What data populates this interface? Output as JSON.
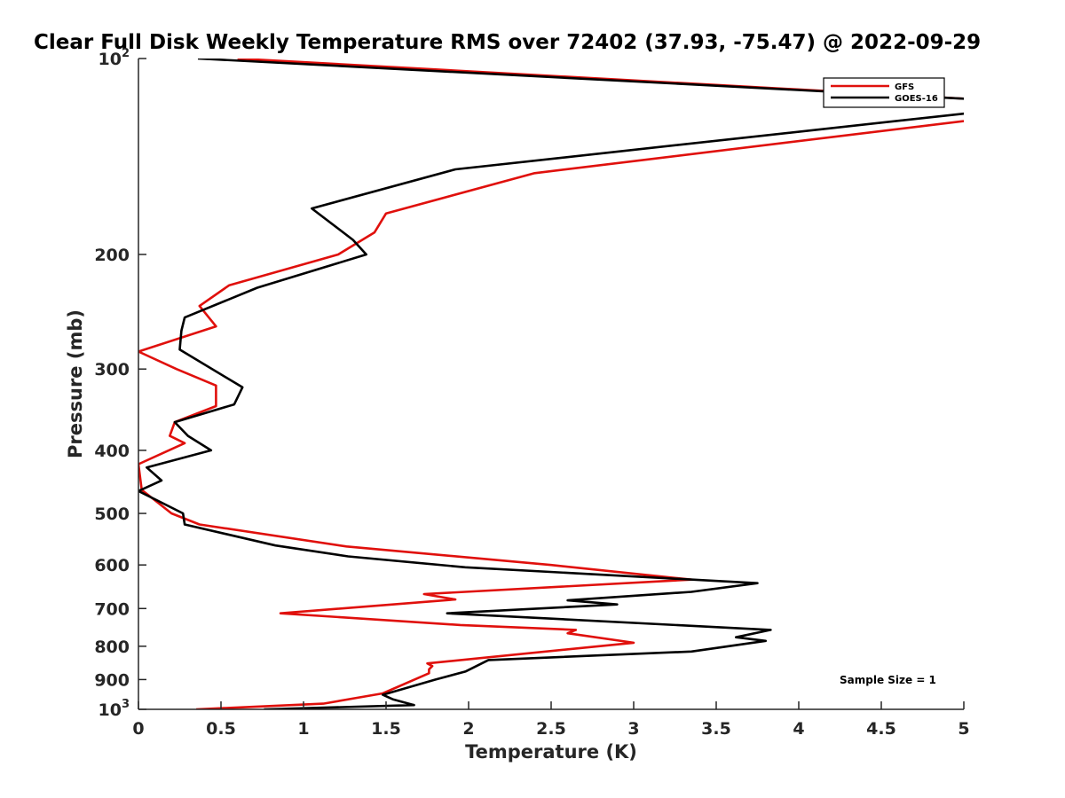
{
  "chart_data": {
    "type": "line",
    "title": "Clear Full Disk Weekly Temperature RMS over 72402 (37.93, -75.47) @ 2022-09-29",
    "xlabel": "Temperature (K)",
    "ylabel": "Pressure (mb)",
    "xlim": [
      0,
      5
    ],
    "ylim": [
      100,
      1000
    ],
    "y_scale": "log",
    "y_reversed": true,
    "grid": false,
    "x_ticks": [
      "0",
      "0.5",
      "1",
      "1.5",
      "2",
      "2.5",
      "3",
      "3.5",
      "4",
      "4.5",
      "5"
    ],
    "y_ticks": [
      {
        "value": 100,
        "base": "10",
        "exp": "2"
      },
      {
        "value": 200,
        "label": "200"
      },
      {
        "value": 300,
        "label": "300"
      },
      {
        "value": 400,
        "label": "400"
      },
      {
        "value": 500,
        "label": "500"
      },
      {
        "value": 600,
        "label": "600"
      },
      {
        "value": 700,
        "label": "700"
      },
      {
        "value": 800,
        "label": "800"
      },
      {
        "value": 900,
        "label": "900"
      },
      {
        "value": 1000,
        "base": "10",
        "exp": "3"
      }
    ],
    "legend_position": "top-right",
    "annotation": "Sample Size = 1",
    "series": [
      {
        "name": "GFS",
        "color": "#e0100c",
        "points": [
          [
            0.6,
            100
          ],
          [
            5.2,
            116
          ],
          [
            5.2,
            123
          ],
          [
            2.4,
            150
          ],
          [
            1.5,
            173
          ],
          [
            1.43,
            185
          ],
          [
            1.21,
            200
          ],
          [
            0.55,
            223
          ],
          [
            0.37,
            240
          ],
          [
            0.47,
            258
          ],
          [
            0.0,
            282
          ],
          [
            0.23,
            300
          ],
          [
            0.47,
            318
          ],
          [
            0.47,
            342
          ],
          [
            0.22,
            362
          ],
          [
            0.19,
            380
          ],
          [
            0.28,
            390
          ],
          [
            0.0,
            420
          ],
          [
            0.02,
            460
          ],
          [
            0.2,
            500
          ],
          [
            0.37,
            520
          ],
          [
            1.26,
            562
          ],
          [
            2.5,
            600
          ],
          [
            3.35,
            632
          ],
          [
            1.73,
            665
          ],
          [
            1.92,
            678
          ],
          [
            0.86,
            712
          ],
          [
            1.95,
            742
          ],
          [
            2.65,
            755
          ],
          [
            2.6,
            764
          ],
          [
            3.0,
            790
          ],
          [
            1.75,
            850
          ],
          [
            1.78,
            858
          ],
          [
            1.76,
            868
          ],
          [
            1.76,
            880
          ],
          [
            1.48,
            945
          ],
          [
            1.12,
            980
          ],
          [
            0.35,
            1000
          ]
        ]
      },
      {
        "name": "GOES-16",
        "color": "#000000",
        "points": [
          [
            0.36,
            100
          ],
          [
            5.2,
            116
          ],
          [
            5.2,
            120
          ],
          [
            1.92,
            148
          ],
          [
            1.05,
            170
          ],
          [
            1.3,
            190
          ],
          [
            1.38,
            200
          ],
          [
            0.72,
            225
          ],
          [
            0.28,
            250
          ],
          [
            0.26,
            262
          ],
          [
            0.25,
            280
          ],
          [
            0.63,
            320
          ],
          [
            0.58,
            340
          ],
          [
            0.22,
            362
          ],
          [
            0.3,
            380
          ],
          [
            0.44,
            400
          ],
          [
            0.05,
            425
          ],
          [
            0.14,
            445
          ],
          [
            0.0,
            462
          ],
          [
            0.27,
            500
          ],
          [
            0.28,
            520
          ],
          [
            0.83,
            560
          ],
          [
            1.27,
            582
          ],
          [
            1.98,
            605
          ],
          [
            3.75,
            640
          ],
          [
            3.35,
            660
          ],
          [
            2.6,
            680
          ],
          [
            2.9,
            690
          ],
          [
            1.87,
            712
          ],
          [
            3.83,
            755
          ],
          [
            3.62,
            775
          ],
          [
            3.8,
            785
          ],
          [
            3.35,
            815
          ],
          [
            2.12,
            840
          ],
          [
            1.98,
            875
          ],
          [
            1.8,
            900
          ],
          [
            1.48,
            950
          ],
          [
            1.54,
            965
          ],
          [
            1.67,
            985
          ],
          [
            0.76,
            1000
          ]
        ]
      }
    ]
  }
}
